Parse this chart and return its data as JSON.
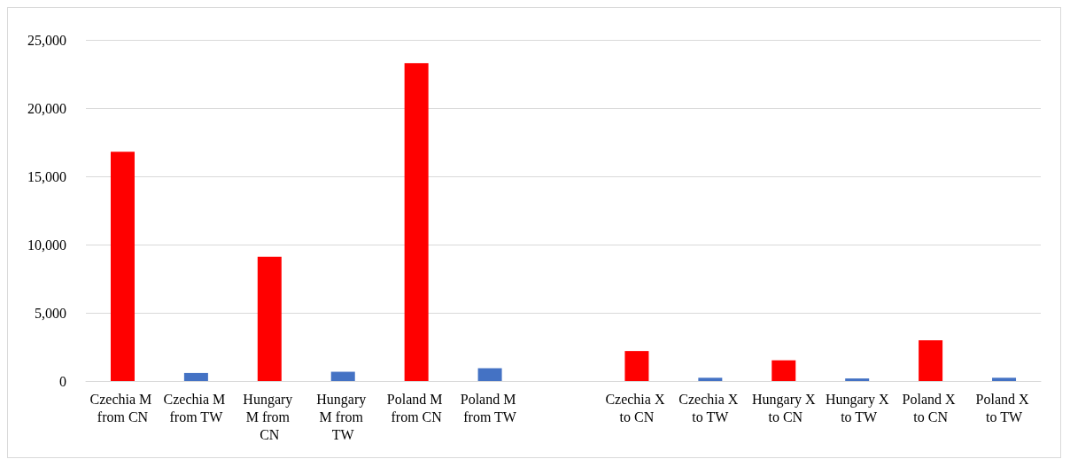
{
  "chart_data": {
    "type": "bar",
    "categories": [
      "Czechia M from CN",
      "Czechia M from TW",
      "Hungary M from CN",
      "Hungary M from TW",
      "Poland M from CN",
      "Poland M from TW",
      null,
      "Czechia X to CN",
      "Czechia X to TW",
      "Hungary X to CN",
      "Hungary X to TW",
      "Poland X to CN",
      "Poland X to TW"
    ],
    "values": [
      16800,
      590,
      9100,
      680,
      23300,
      940,
      null,
      2200,
      240,
      1520,
      190,
      2980,
      240
    ],
    "colors": [
      "#ff0000",
      "#4472c4",
      "#ff0000",
      "#4472c4",
      "#ff0000",
      "#4472c4",
      "#ff0000",
      "#ff0000",
      "#4472c4",
      "#ff0000",
      "#4472c4",
      "#ff0000",
      "#4472c4"
    ],
    "ylim": [
      0,
      25000
    ],
    "yticks": [
      0,
      {
        "value": 5000,
        "label": "5,000"
      },
      {
        "value": 10000,
        "label": "10,000"
      },
      {
        "value": 15000,
        "label": "15,000"
      },
      {
        "value": 20000,
        "label": "20,000"
      },
      {
        "value": 25000,
        "label": "25,000"
      }
    ],
    "grid": "y"
  }
}
